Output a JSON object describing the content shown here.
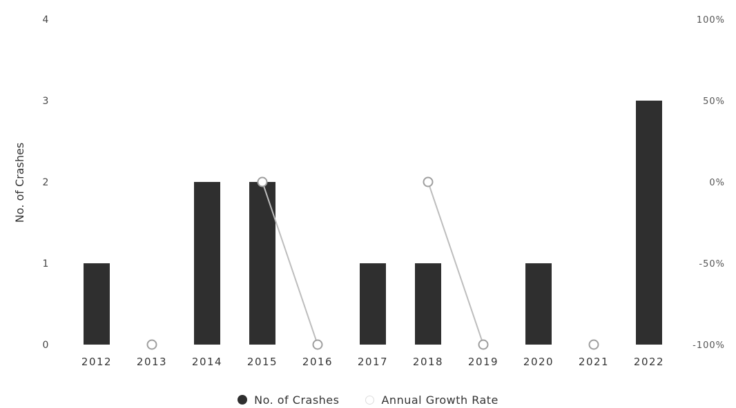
{
  "chart_data": {
    "type": "bar",
    "categories": [
      "2012",
      "2013",
      "2014",
      "2015",
      "2016",
      "2017",
      "2018",
      "2019",
      "2020",
      "2021",
      "2022"
    ],
    "series": [
      {
        "name": "No. of Crashes",
        "type": "bar",
        "axis": "left",
        "values": [
          1,
          0,
          2,
          2,
          0,
          1,
          1,
          0,
          1,
          0,
          3
        ]
      },
      {
        "name": "Annual Growth Rate",
        "type": "line",
        "axis": "right",
        "values": [
          null,
          -100,
          null,
          0,
          -100,
          null,
          0,
          -100,
          null,
          -100,
          null
        ]
      }
    ],
    "ylabel": "No. of Crashes",
    "ylim": [
      0,
      4
    ],
    "yticks": [
      "0",
      "1",
      "2",
      "3",
      "4"
    ],
    "y2lim": [
      -100,
      100
    ],
    "y2ticks": [
      "-100%",
      "-50%",
      "0%",
      "50%",
      "100%"
    ],
    "grid": false,
    "legend": "bottom-center",
    "colors": {
      "bar": "#2f2f2f",
      "line": "#bdbdbd",
      "marker_edge": "#9e9e9e"
    }
  },
  "legend": {
    "crashes_label": "No. of Crashes",
    "growth_label": "Annual Growth Rate"
  }
}
